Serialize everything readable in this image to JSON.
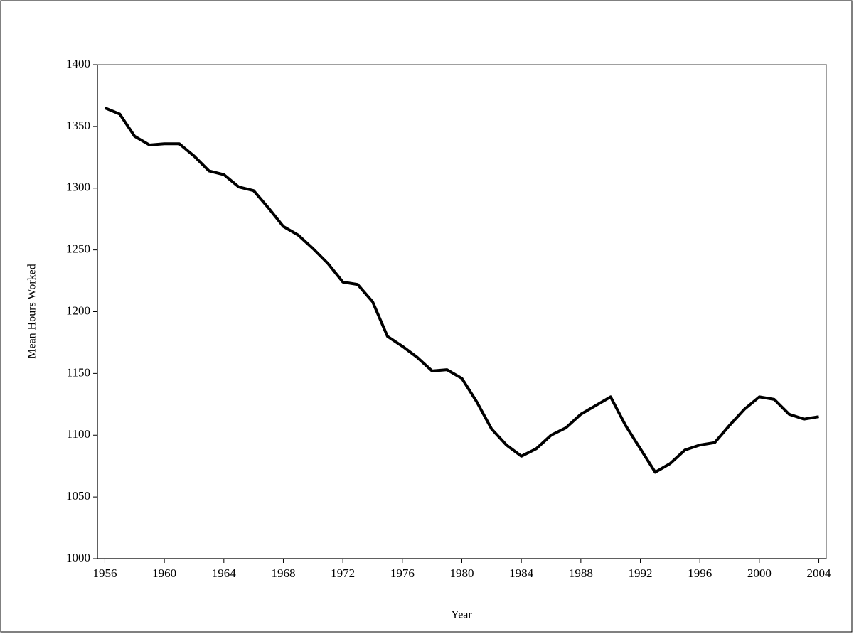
{
  "chart_data": {
    "type": "line",
    "x_label": "Year",
    "y_label": "Mean Hours Worked",
    "categories": [
      1956,
      null,
      null,
      null,
      1960,
      null,
      null,
      null,
      1964,
      null,
      null,
      null,
      1968,
      null,
      null,
      null,
      1972,
      null,
      null,
      null,
      1976,
      null,
      null,
      null,
      1980,
      null,
      null,
      null,
      1984,
      null,
      null,
      null,
      1988,
      null,
      null,
      null,
      1992,
      null,
      null,
      null,
      1996,
      null,
      null,
      null,
      2000,
      null,
      null,
      null,
      2004
    ],
    "series": [
      {
        "color": "#000000",
        "values": [
          1365,
          1360,
          1342,
          1335,
          1336,
          1336,
          1326,
          1314,
          1311,
          1301,
          1298,
          1284,
          1269,
          1262,
          1251,
          1239,
          1224,
          1222,
          1208,
          1180,
          1172,
          1163,
          1152,
          1153,
          1146,
          1127,
          1105,
          1092,
          1083,
          1089,
          1100,
          1106,
          1117,
          1124,
          1131,
          1108,
          1089,
          1070,
          1077,
          1088,
          1092,
          1094,
          1108,
          1121,
          1131,
          1129,
          1117,
          1113,
          1115
        ]
      }
    ],
    "ylim": [
      1000,
      1400
    ],
    "yticks": [
      1000,
      1050,
      1100,
      1150,
      1200,
      1250,
      1300,
      1350,
      1400
    ],
    "grid": false
  }
}
